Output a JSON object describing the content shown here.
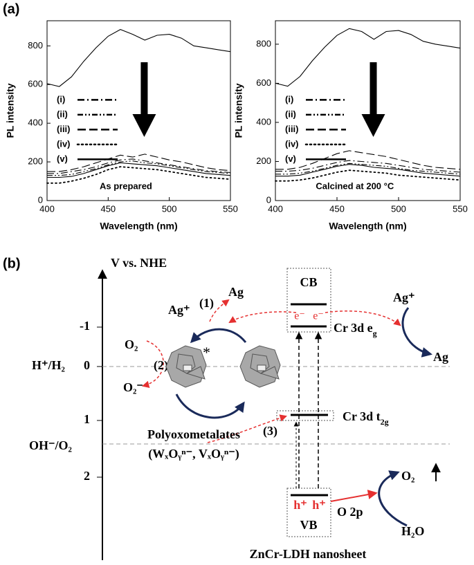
{
  "chart_data": [
    {
      "type": "line",
      "panel_label": "(a)",
      "annotation": "As prepared",
      "xlabel": "Wavelength (nm)",
      "ylabel": "PL intensity",
      "x": [
        400,
        410,
        420,
        430,
        440,
        450,
        460,
        470,
        480,
        490,
        500,
        510,
        520,
        530,
        540,
        550
      ],
      "xlim": [
        400,
        550
      ],
      "xticks": [
        400,
        450,
        500,
        550
      ],
      "ylim": [
        0,
        930
      ],
      "yticks": [
        0,
        200,
        400,
        600,
        800
      ],
      "legend": "center left",
      "series": [
        {
          "color": "#000000",
          "dash": "solid",
          "values": [
            605,
            590,
            640,
            720,
            790,
            850,
            885,
            860,
            830,
            855,
            860,
            840,
            800,
            790,
            780,
            770
          ]
        },
        {
          "name": "(i)",
          "color": "#000000",
          "dash": "10 4 2 4",
          "values": [
            140,
            140,
            150,
            160,
            175,
            195,
            210,
            215,
            205,
            195,
            185,
            175,
            165,
            155,
            150,
            145
          ]
        },
        {
          "name": "(ii)",
          "color": "#000000",
          "dash": "8 3 2 3 2 3",
          "values": [
            130,
            130,
            135,
            150,
            165,
            185,
            200,
            205,
            195,
            190,
            180,
            170,
            160,
            150,
            145,
            140
          ]
        },
        {
          "name": "(iii)",
          "color": "#000000",
          "dash": "12 5",
          "values": [
            150,
            150,
            160,
            175,
            195,
            215,
            235,
            225,
            240,
            225,
            210,
            200,
            185,
            170,
            160,
            155
          ]
        },
        {
          "name": "(iv)",
          "color": "#000000",
          "dash": "2 4",
          "values": [
            90,
            90,
            100,
            115,
            135,
            160,
            175,
            170,
            165,
            160,
            150,
            140,
            130,
            120,
            115,
            110
          ]
        },
        {
          "name": "(v)",
          "color": "#000000",
          "dash": "solid",
          "values": [
            120,
            120,
            125,
            140,
            160,
            180,
            195,
            190,
            185,
            180,
            170,
            160,
            150,
            140,
            135,
            130
          ]
        }
      ]
    },
    {
      "type": "line",
      "annotation": "Calcined at 200 °C",
      "xlabel": "Wavelength (nm)",
      "ylabel": "PL intensity",
      "x": [
        400,
        410,
        420,
        430,
        440,
        450,
        460,
        470,
        480,
        490,
        500,
        510,
        520,
        530,
        540,
        550
      ],
      "xlim": [
        400,
        550
      ],
      "xticks": [
        400,
        450,
        500,
        550
      ],
      "ylim": [
        0,
        920
      ],
      "yticks": [
        0,
        200,
        400,
        600,
        800
      ],
      "legend": "center left",
      "series": [
        {
          "color": "#000000",
          "dash": "solid",
          "values": [
            600,
            585,
            635,
            715,
            785,
            845,
            880,
            865,
            825,
            865,
            870,
            850,
            815,
            800,
            790,
            780
          ]
        },
        {
          "name": "(i)",
          "color": "#000000",
          "dash": "10 4 2 4",
          "values": [
            150,
            150,
            155,
            165,
            180,
            195,
            205,
            200,
            195,
            190,
            180,
            170,
            160,
            155,
            150,
            145
          ]
        },
        {
          "name": "(ii)",
          "color": "#000000",
          "dash": "8 3 2 3 2 3",
          "values": [
            135,
            135,
            140,
            150,
            165,
            180,
            190,
            185,
            180,
            175,
            165,
            155,
            150,
            145,
            140,
            135
          ]
        },
        {
          "name": "(iii)",
          "color": "#000000",
          "dash": "12 5",
          "values": [
            160,
            160,
            170,
            190,
            215,
            240,
            255,
            245,
            235,
            225,
            210,
            195,
            180,
            170,
            165,
            160
          ]
        },
        {
          "name": "(iv)",
          "color": "#000000",
          "dash": "2 4",
          "values": [
            100,
            100,
            105,
            115,
            130,
            145,
            155,
            150,
            145,
            140,
            130,
            125,
            120,
            115,
            110,
            105
          ]
        },
        {
          "name": "(v)",
          "color": "#000000",
          "dash": "solid",
          "values": [
            125,
            125,
            130,
            145,
            160,
            175,
            185,
            180,
            170,
            165,
            160,
            150,
            140,
            135,
            130,
            125
          ]
        }
      ]
    }
  ],
  "diagram": {
    "panel_label": "(b)",
    "axis_title": "V vs. NHE",
    "axis_ticks": [
      "-1",
      "0",
      "1",
      "2"
    ],
    "redox_levels": [
      "H⁺/H₂",
      "OH⁻/O₂"
    ],
    "conduction_band": "CB",
    "valence_band": "VB",
    "cr_eg": {
      "text": "Cr 3d e",
      "sub": "g"
    },
    "cr_t2g": {
      "text": "Cr 3d t",
      "sub": "2g"
    },
    "o2p": "O 2p",
    "electrons": [
      "e⁻",
      "e⁻"
    ],
    "holes": [
      "h⁺",
      "h⁺"
    ],
    "steps": [
      "(1)",
      "(2)",
      "(3)"
    ],
    "ag_ion_left": "Ag⁺",
    "ag_left": "Ag",
    "ag_ion_right": "Ag⁺",
    "ag_right": "Ag",
    "oxygen": "O₂",
    "superoxide": "O₂⁻",
    "excited_mark": "*",
    "pom_name": "Polyoxometalates",
    "pom_formula": "(WₓOᵧⁿ⁻, VₓOᵧⁿ⁻)",
    "water": "H₂O",
    "oxygen_evolved": "O₂",
    "material": "ZnCr-LDH nanosheet"
  }
}
